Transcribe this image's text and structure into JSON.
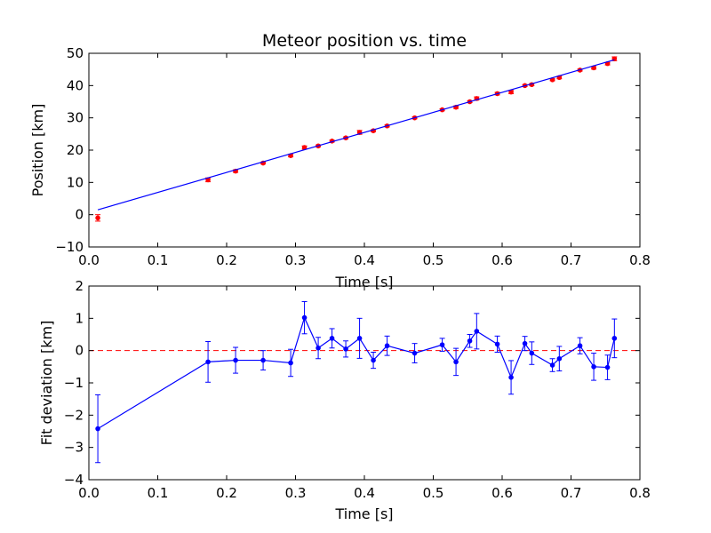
{
  "chart_data": [
    {
      "type": "scatter",
      "title": "Meteor position vs. time",
      "xlabel": "Time [s]",
      "ylabel": "Position [km]",
      "xlim": [
        0,
        0.8
      ],
      "ylim": [
        -10,
        50
      ],
      "xticks": [
        "0.0",
        "0.1",
        "0.2",
        "0.3",
        "0.4",
        "0.5",
        "0.6",
        "0.7",
        "0.8"
      ],
      "yticks": [
        "−10",
        "0",
        "10",
        "20",
        "30",
        "40",
        "50"
      ],
      "grid": false,
      "colors": {
        "points": "#ff0000",
        "fit": "#0000ff",
        "errorbars": "#ff0000"
      },
      "series": [
        {
          "kind": "errorbar-points",
          "x": [
            0.013,
            0.173,
            0.213,
            0.253,
            0.293,
            0.313,
            0.333,
            0.353,
            0.373,
            0.393,
            0.413,
            0.433,
            0.473,
            0.513,
            0.533,
            0.553,
            0.563,
            0.593,
            0.613,
            0.633,
            0.643,
            0.673,
            0.683,
            0.713,
            0.733,
            0.753,
            0.763
          ],
          "y": [
            -1.0,
            10.8,
            13.5,
            16.0,
            18.3,
            20.8,
            21.3,
            22.8,
            23.8,
            25.5,
            26.0,
            27.5,
            30.0,
            32.5,
            33.3,
            35.0,
            36.0,
            37.5,
            38.0,
            40.0,
            40.3,
            41.8,
            42.5,
            44.8,
            45.5,
            46.8,
            48.3
          ],
          "yerr": [
            1.0,
            0.6,
            0.4,
            0.3,
            0.4,
            0.5,
            0.3,
            0.3,
            0.3,
            0.6,
            0.3,
            0.3,
            0.3,
            0.3,
            0.4,
            0.3,
            0.5,
            0.4,
            0.5,
            0.3,
            0.3,
            0.3,
            0.4,
            0.3,
            0.4,
            0.4,
            0.6
          ]
        },
        {
          "kind": "fit-line",
          "x": [
            0.013,
            0.763
          ],
          "y": [
            1.5,
            48.0
          ]
        }
      ]
    },
    {
      "type": "line",
      "xlabel": "Time [s]",
      "ylabel": "Fit deviation [km]",
      "xlim": [
        0,
        0.8
      ],
      "ylim": [
        -4,
        2
      ],
      "xticks": [
        "0.0",
        "0.1",
        "0.2",
        "0.3",
        "0.4",
        "0.5",
        "0.6",
        "0.7",
        "0.8"
      ],
      "yticks": [
        "−4",
        "−3",
        "−2",
        "−1",
        "0",
        "1",
        "2"
      ],
      "grid": false,
      "colors": {
        "series": "#0000ff",
        "zero_line": "#ff0000"
      },
      "reference_line": {
        "y": 0,
        "style": "dashed"
      },
      "series": [
        {
          "kind": "errorbar-line",
          "x": [
            0.013,
            0.173,
            0.213,
            0.253,
            0.293,
            0.313,
            0.333,
            0.353,
            0.373,
            0.393,
            0.413,
            0.433,
            0.473,
            0.513,
            0.533,
            0.553,
            0.563,
            0.593,
            0.613,
            0.633,
            0.643,
            0.673,
            0.683,
            0.713,
            0.733,
            0.753,
            0.763
          ],
          "y": [
            -2.42,
            -0.35,
            -0.3,
            -0.3,
            -0.38,
            1.02,
            0.08,
            0.38,
            0.05,
            0.38,
            -0.3,
            0.15,
            -0.08,
            0.18,
            -0.35,
            0.3,
            0.6,
            0.2,
            -0.83,
            0.22,
            -0.08,
            -0.45,
            -0.25,
            0.15,
            -0.5,
            -0.52,
            0.38
          ],
          "yerr": [
            1.05,
            0.63,
            0.4,
            0.3,
            0.42,
            0.5,
            0.33,
            0.3,
            0.25,
            0.62,
            0.25,
            0.3,
            0.3,
            0.2,
            0.42,
            0.2,
            0.55,
            0.25,
            0.52,
            0.22,
            0.35,
            0.2,
            0.38,
            0.25,
            0.42,
            0.38,
            0.6
          ]
        }
      ]
    }
  ]
}
